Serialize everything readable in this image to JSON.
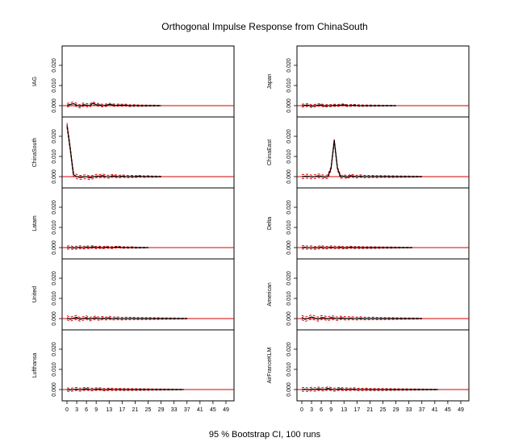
{
  "chart_data": {
    "type": "line",
    "title": "Orthogonal Impulse Response from ChinaSouth",
    "footer": "95 % Bootstrap CI,  100 runs",
    "x_ticks": [
      0,
      3,
      6,
      9,
      13,
      17,
      21,
      25,
      29,
      33,
      37,
      41,
      45,
      49
    ],
    "xlim": [
      0,
      50
    ],
    "ylim": [
      -0.004,
      0.028
    ],
    "y_ticks": [
      "0.000",
      "0.010",
      "0.020"
    ],
    "y_tick_values": [
      0,
      0.01,
      0.02
    ],
    "zero_line_color": "#d40000",
    "response_color": "#000000",
    "ci_color": "#d40000",
    "panels": [
      {
        "name": "IAG",
        "response": [
          0.0002,
          0.0006,
          0.001,
          0.0003,
          -0.0004,
          0.0005,
          0.0003,
          0.0,
          0.0012,
          0.0005,
          0.0004,
          0.0,
          0.0002,
          0.0006,
          0.0004,
          0.0001,
          0.0003,
          0.0002,
          0.0003,
          0.0,
          0.0,
          0.0001,
          0.0,
          0.0,
          0.0,
          0.0,
          0.0,
          0.0,
          0.0,
          0.0
        ],
        "ci": 0.0009
      },
      {
        "name": "Japan",
        "response": [
          0.0,
          0.0002,
          0.0003,
          -0.0003,
          0.0,
          0.0003,
          0.0004,
          -0.0002,
          0.0,
          0.0,
          0.0002,
          0.0001,
          0.0003,
          0.0004,
          0.0,
          0.0001,
          0.0002,
          0.0001,
          0.0,
          0.0,
          0.0,
          0.0,
          0.0,
          0.0,
          0.0,
          0.0,
          0.0,
          0.0,
          0.0,
          0.0
        ],
        "ci": 0.0007
      },
      {
        "name": "ChinaSouth",
        "response": [
          0.0255,
          0.014,
          0.001,
          0.0,
          -0.0004,
          -0.0002,
          0.0,
          -0.0006,
          -0.0002,
          0.0003,
          0.0002,
          0.0005,
          0.0001,
          -0.0001,
          0.0004,
          0.0002,
          0.0,
          0.0003,
          0.0001,
          0.0,
          0.0001,
          0.0,
          0.0002,
          0.0001,
          0.0,
          0.0001,
          0.0,
          0.0,
          0.0,
          0.0
        ],
        "ci": 0.0011
      },
      {
        "name": "ChinaEast",
        "response": [
          0.0,
          0.0002,
          0.0002,
          -0.0002,
          0.0,
          0.0004,
          0.0002,
          -0.0003,
          0.0,
          0.004,
          0.018,
          0.004,
          -0.0002,
          0.0003,
          -0.0004,
          0.0005,
          0.0002,
          0.0,
          0.0003,
          0.0,
          0.0001,
          0.0,
          0.0001,
          0.0,
          0.0001,
          0.0,
          0.0001,
          0.0,
          0.0,
          0.0,
          0.0,
          0.0,
          0.0,
          0.0,
          0.0,
          0.0,
          0.0,
          0.0
        ],
        "ci": 0.001
      },
      {
        "name": "Latam",
        "response": [
          0.0,
          0.0001,
          -0.0002,
          0.0,
          0.0002,
          -0.0001,
          0.0003,
          0.0,
          0.0004,
          0.0,
          0.0002,
          -0.0001,
          0.0003,
          0.0001,
          0.0,
          0.0002,
          0.0003,
          0.0,
          0.0001,
          0.0,
          0.0001,
          0.0,
          0.0,
          0.0,
          0.0,
          0.0
        ],
        "ci": 0.0008
      },
      {
        "name": "Delta",
        "response": [
          0.0001,
          0.0002,
          -0.0001,
          0.0001,
          -0.0002,
          0.0,
          0.0003,
          -0.0001,
          0.0,
          0.0002,
          0.0001,
          0.0,
          0.0002,
          -0.0001,
          0.0,
          0.0002,
          0.0,
          0.0001,
          0.0,
          0.0,
          0.0,
          0.0,
          0.0,
          0.0,
          0.0,
          0.0,
          0.0,
          0.0,
          0.0,
          0.0,
          0.0,
          0.0,
          0.0,
          0.0,
          0.0
        ],
        "ci": 0.0008
      },
      {
        "name": "United",
        "response": [
          0.0004,
          -0.0003,
          0.0002,
          0.0006,
          -0.0004,
          0.0,
          0.0005,
          -0.0003,
          0.0002,
          0.0004,
          -0.0002,
          0.0003,
          0.0,
          0.0004,
          -0.0001,
          0.0002,
          0.0001,
          -0.0001,
          0.0001,
          0.0,
          0.0001,
          0.0,
          0.0,
          0.0,
          0.0,
          0.0,
          0.0,
          0.0,
          0.0,
          0.0,
          0.0,
          0.0,
          0.0,
          0.0,
          0.0,
          0.0,
          0.0,
          0.0
        ],
        "ci": 0.001
      },
      {
        "name": "American",
        "response": [
          0.0006,
          -0.0004,
          0.0002,
          0.0008,
          0.0003,
          -0.0003,
          0.0005,
          0.0004,
          -0.0002,
          0.0005,
          0.0003,
          -0.0001,
          0.0004,
          0.0002,
          0.0,
          0.0003,
          0.0001,
          0.0,
          0.0002,
          0.0,
          0.0001,
          0.0,
          0.0001,
          0.0,
          0.0,
          0.0,
          0.0,
          0.0,
          0.0,
          0.0,
          0.0,
          0.0,
          0.0,
          0.0,
          0.0,
          0.0,
          0.0,
          0.0
        ],
        "ci": 0.0011
      },
      {
        "name": "Lufthansa",
        "response": [
          0.0,
          -0.0002,
          0.0001,
          0.0003,
          -0.0001,
          0.0002,
          0.0004,
          0.0001,
          0.0,
          0.0002,
          0.0003,
          0.0,
          -0.0001,
          0.0002,
          0.0001,
          0.0,
          0.0001,
          0.0,
          0.0,
          0.0,
          0.0,
          0.0,
          0.0,
          0.0,
          0.0,
          0.0,
          0.0,
          0.0,
          0.0,
          0.0,
          0.0,
          0.0,
          0.0,
          0.0,
          0.0,
          0.0,
          0.0
        ],
        "ci": 0.0008
      },
      {
        "name": "AirFranceKLM",
        "response": [
          0.0,
          0.0002,
          -0.0002,
          0.0003,
          0.0,
          0.0004,
          0.0002,
          0.0,
          0.0006,
          0.0003,
          -0.0001,
          0.0002,
          0.0004,
          0.0,
          0.0002,
          0.0001,
          0.0003,
          0.0,
          0.0001,
          0.0,
          0.0001,
          0.0,
          0.0,
          0.0,
          0.0,
          0.0,
          0.0,
          0.0,
          0.0,
          0.0,
          0.0,
          0.0,
          0.0,
          0.0,
          0.0,
          0.0,
          0.0,
          0.0,
          0.0,
          0.0,
          0.0,
          0.0,
          0.0
        ],
        "ci": 0.0009
      }
    ]
  }
}
